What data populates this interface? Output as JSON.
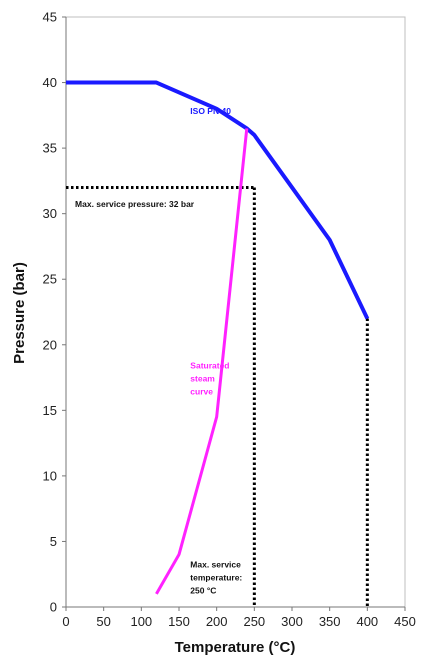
{
  "chart_data": {
    "type": "line",
    "xlabel": "Temperature (°C)",
    "ylabel": "Pressure (bar)",
    "xlim": [
      0,
      450
    ],
    "ylim": [
      0,
      45
    ],
    "xticks": [
      0,
      50,
      100,
      150,
      200,
      250,
      300,
      350,
      400,
      450
    ],
    "yticks": [
      0,
      5,
      10,
      15,
      20,
      25,
      30,
      35,
      40,
      45
    ],
    "grid": false,
    "series": [
      {
        "name": "ISO PN 40",
        "color": "#1a1aff",
        "style": "solid",
        "x": [
          0,
          120,
          200,
          240,
          250,
          300,
          350,
          400
        ],
        "y": [
          40,
          40,
          38,
          36.5,
          36,
          32,
          28,
          22
        ]
      },
      {
        "name": "Saturated steam curve",
        "color": "#ff22ff",
        "style": "solid",
        "x": [
          120,
          150,
          200,
          240
        ],
        "y": [
          1,
          4,
          14.5,
          36.5
        ]
      }
    ],
    "reference_lines": [
      {
        "color": "#000000",
        "style": "dotted",
        "x": [
          0,
          250
        ],
        "y": [
          32,
          32
        ]
      },
      {
        "color": "#000000",
        "style": "dotted",
        "x": [
          250,
          250
        ],
        "y": [
          32,
          0
        ]
      },
      {
        "color": "#000000",
        "style": "dotted",
        "x": [
          400,
          400
        ],
        "y": [
          22,
          0
        ]
      }
    ],
    "annotations": [
      {
        "id": "iso",
        "text_lines": [
          "ISO PN 40"
        ],
        "color": "#1a1aff",
        "x": 165,
        "y": 37.6
      },
      {
        "id": "pressure",
        "text_lines": [
          "Max. service pressure: 32 bar"
        ],
        "color": "#111111",
        "x": 12,
        "y": 30.5
      },
      {
        "id": "steam",
        "text_lines": [
          "Saturated",
          "steam",
          "curve"
        ],
        "color": "#ff22ff",
        "x": 165,
        "y": 18.2
      },
      {
        "id": "temp",
        "text_lines": [
          "Max. service",
          "temperature:",
          "250 °C"
        ],
        "color": "#111111",
        "x": 165,
        "y": 3.0
      }
    ]
  }
}
